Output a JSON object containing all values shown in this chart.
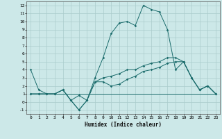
{
  "xlabel": "Humidex (Indice chaleur)",
  "background_color": "#cce8e8",
  "grid_color": "#aacccc",
  "line_color": "#1a6b6b",
  "xlim": [
    -0.5,
    23.5
  ],
  "ylim": [
    -1.5,
    12.5
  ],
  "xticks": [
    0,
    1,
    2,
    3,
    4,
    5,
    6,
    7,
    8,
    9,
    10,
    11,
    12,
    13,
    14,
    15,
    16,
    17,
    18,
    19,
    20,
    21,
    22,
    23
  ],
  "yticks": [
    -1,
    0,
    1,
    2,
    3,
    4,
    5,
    6,
    7,
    8,
    9,
    10,
    11,
    12
  ],
  "lines": [
    {
      "x": [
        0,
        1,
        2,
        3,
        4,
        5,
        6,
        7,
        8,
        9,
        10,
        11,
        12,
        13,
        14,
        15,
        16,
        17,
        18,
        19,
        20,
        21,
        22,
        23
      ],
      "y": [
        4,
        1.5,
        1,
        1,
        1.5,
        0.2,
        0.8,
        0.2,
        3,
        5.5,
        8.5,
        9.8,
        10,
        9.5,
        12,
        11.5,
        11.2,
        9,
        4,
        5,
        3,
        1.5,
        2,
        1
      ],
      "markers": true
    },
    {
      "x": [
        0,
        23
      ],
      "y": [
        1,
        1
      ],
      "markers": false
    },
    {
      "x": [
        0,
        1,
        2,
        3,
        4,
        5,
        6,
        7,
        8,
        9,
        10,
        11,
        12,
        13,
        14,
        15,
        16,
        17,
        18,
        19,
        20,
        21,
        22,
        23
      ],
      "y": [
        1,
        1,
        1,
        1,
        1.5,
        0.2,
        -1,
        0.2,
        2.5,
        2.5,
        2,
        2.2,
        2.8,
        3.2,
        3.8,
        4.0,
        4.3,
        4.8,
        5.0,
        5.0,
        3.0,
        1.5,
        2.0,
        1.0
      ],
      "markers": true
    },
    {
      "x": [
        0,
        1,
        2,
        3,
        4,
        5,
        6,
        7,
        8,
        9,
        10,
        11,
        12,
        13,
        14,
        15,
        16,
        17,
        18,
        19,
        20,
        21,
        22,
        23
      ],
      "y": [
        1,
        1,
        1,
        1,
        1.5,
        0.2,
        -1,
        0.2,
        2.5,
        3.0,
        3.2,
        3.5,
        4.0,
        4.0,
        4.5,
        4.8,
        5.0,
        5.5,
        5.5,
        5.0,
        3.0,
        1.5,
        2.0,
        1.0
      ],
      "markers": true
    }
  ]
}
